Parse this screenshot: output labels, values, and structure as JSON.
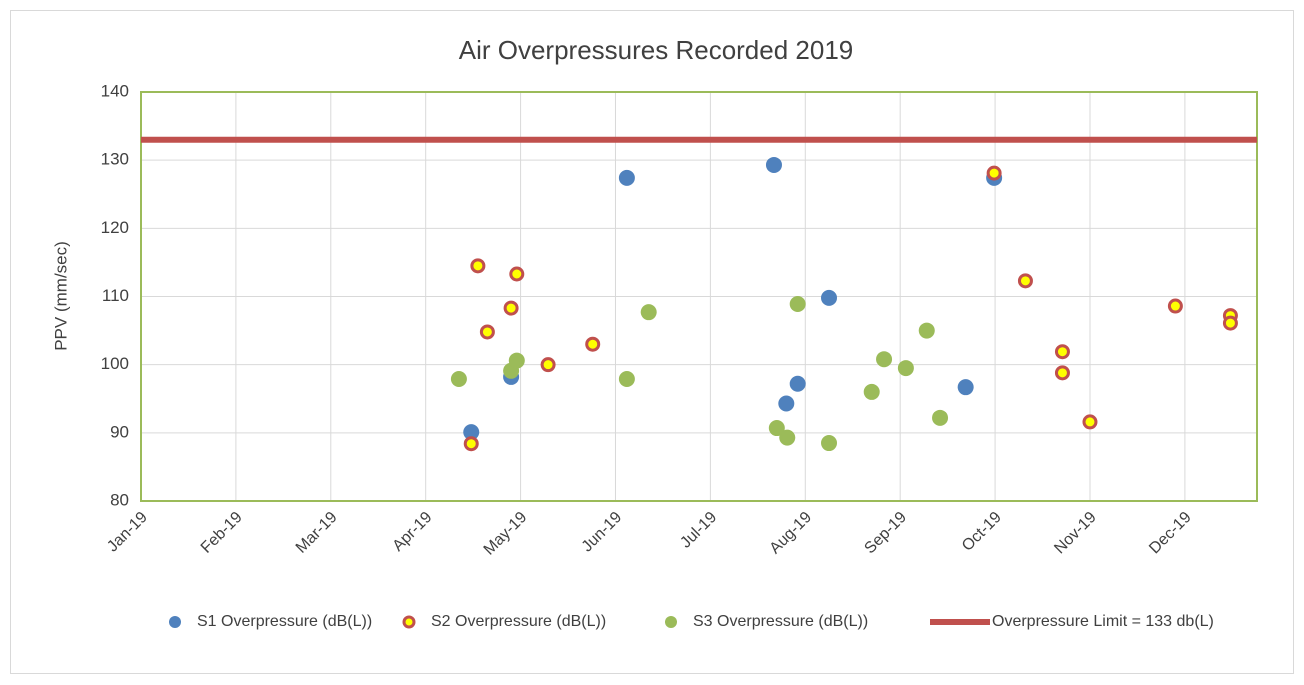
{
  "chart_data": {
    "type": "scatter",
    "title": "Air Overpressures Recorded 2019",
    "ylabel": "PPV (mm/sec)",
    "xlim": [
      0,
      11.76
    ],
    "xticks": [
      {
        "value": 0,
        "label": "Jan-19"
      },
      {
        "value": 1,
        "label": "Feb-19"
      },
      {
        "value": 2,
        "label": "Mar-19"
      },
      {
        "value": 3,
        "label": "Apr-19"
      },
      {
        "value": 4,
        "label": "May-19"
      },
      {
        "value": 5,
        "label": "Jun-19"
      },
      {
        "value": 6,
        "label": "Jul-19"
      },
      {
        "value": 7,
        "label": "Aug-19"
      },
      {
        "value": 8,
        "label": "Sep-19"
      },
      {
        "value": 9,
        "label": "Oct-19"
      },
      {
        "value": 10,
        "label": "Nov-19"
      },
      {
        "value": 11,
        "label": "Dec-19"
      }
    ],
    "ylim": [
      80,
      140
    ],
    "yticks": [
      80,
      90,
      100,
      110,
      120,
      130,
      140
    ],
    "grid": true,
    "legend": "bottom",
    "series": [
      {
        "name": "S1 Overpressure (dB(L))",
        "color": "#4f81bd",
        "kind": "marker",
        "x": [
          3.48,
          3.9,
          5.12,
          6.67,
          6.8,
          6.92,
          7.25,
          8.69,
          8.99
        ],
        "values": [
          90.1,
          98.2,
          127.4,
          129.3,
          94.3,
          97.2,
          109.8,
          96.7,
          127.4
        ]
      },
      {
        "name": "S2 Overpressure (dB(L))",
        "color": "#ffff00",
        "edgecolor": "#c0504d",
        "kind": "marker",
        "x": [
          3.48,
          3.55,
          3.65,
          3.9,
          3.96,
          4.29,
          4.76,
          8.99,
          9.32,
          9.71,
          9.71,
          10.0,
          10.9,
          11.48,
          11.48
        ],
        "values": [
          88.4,
          114.5,
          104.8,
          108.3,
          113.3,
          100.0,
          103.0,
          128.1,
          112.3,
          101.9,
          98.8,
          91.6,
          108.6,
          107.2,
          106.1
        ]
      },
      {
        "name": "S3 Overpressure (dB(L))",
        "color": "#9bbb59",
        "kind": "marker",
        "x": [
          3.35,
          3.9,
          3.96,
          5.12,
          5.35,
          6.7,
          6.81,
          6.92,
          7.25,
          7.7,
          7.83,
          8.06,
          8.28,
          8.42
        ],
        "values": [
          97.9,
          99.1,
          100.6,
          97.9,
          107.7,
          90.7,
          89.3,
          108.9,
          88.5,
          96.0,
          100.8,
          99.5,
          105.0,
          92.2
        ]
      },
      {
        "name": "Overpressure Limit = 133 db(L)",
        "color": "#c0504d",
        "kind": "line",
        "x": [
          0,
          11.76
        ],
        "values": [
          133,
          133
        ]
      }
    ]
  }
}
